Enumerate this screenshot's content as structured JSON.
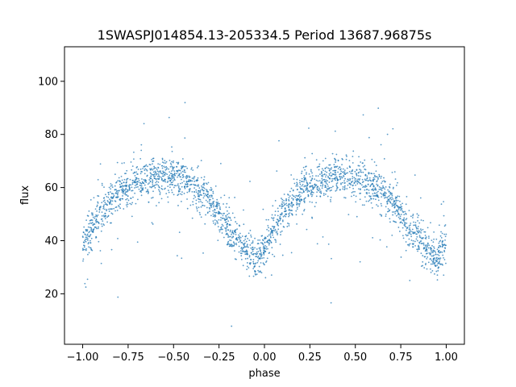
{
  "chart_data": {
    "type": "scatter",
    "title": "1SWASPJ014854.13-205334.5 Period 13687.96875s",
    "xlabel": "phase",
    "ylabel": "flux",
    "xlim": [
      -1.1,
      1.1
    ],
    "ylim": [
      1,
      113
    ],
    "x_ticks": [
      -1.0,
      -0.75,
      -0.5,
      -0.25,
      0.0,
      0.25,
      0.5,
      0.75,
      1.0
    ],
    "x_tick_labels": [
      "−1.00",
      "−0.75",
      "−0.50",
      "−0.25",
      "0.00",
      "0.25",
      "0.50",
      "0.75",
      "1.00"
    ],
    "y_ticks": [
      20,
      40,
      60,
      80,
      100
    ],
    "y_tick_labels": [
      "20",
      "40",
      "60",
      "80",
      "100"
    ],
    "grid": false,
    "legend": "none",
    "marker_color": "#1f77b4",
    "series": [
      {
        "values_note_x": [
          -1.0,
          -0.9,
          -0.8,
          -0.7,
          -0.6,
          -0.55,
          -0.5,
          -0.4,
          -0.3,
          -0.2,
          -0.1,
          -0.05,
          0.0,
          0.1,
          0.2,
          0.3,
          0.4,
          0.45,
          0.5,
          0.6,
          0.7,
          0.8,
          0.9,
          0.95,
          1.0
        ],
        "x": [
          -1.0,
          -0.9,
          -0.8,
          -0.7,
          -0.6,
          -0.55,
          -0.5,
          -0.4,
          -0.3,
          -0.2,
          -0.1,
          -0.05,
          0.0,
          0.1,
          0.2,
          0.3,
          0.4,
          0.45,
          0.5,
          0.6,
          0.7,
          0.8,
          0.9,
          0.95,
          1.0
        ],
        "y": [
          39,
          50,
          58,
          62,
          64,
          64.5,
          64,
          61,
          55,
          45,
          36,
          33,
          38,
          50,
          58,
          62,
          64,
          64.5,
          64,
          61,
          55,
          45,
          36,
          33,
          38
        ],
        "scatter_width": 3.5
      }
    ]
  }
}
